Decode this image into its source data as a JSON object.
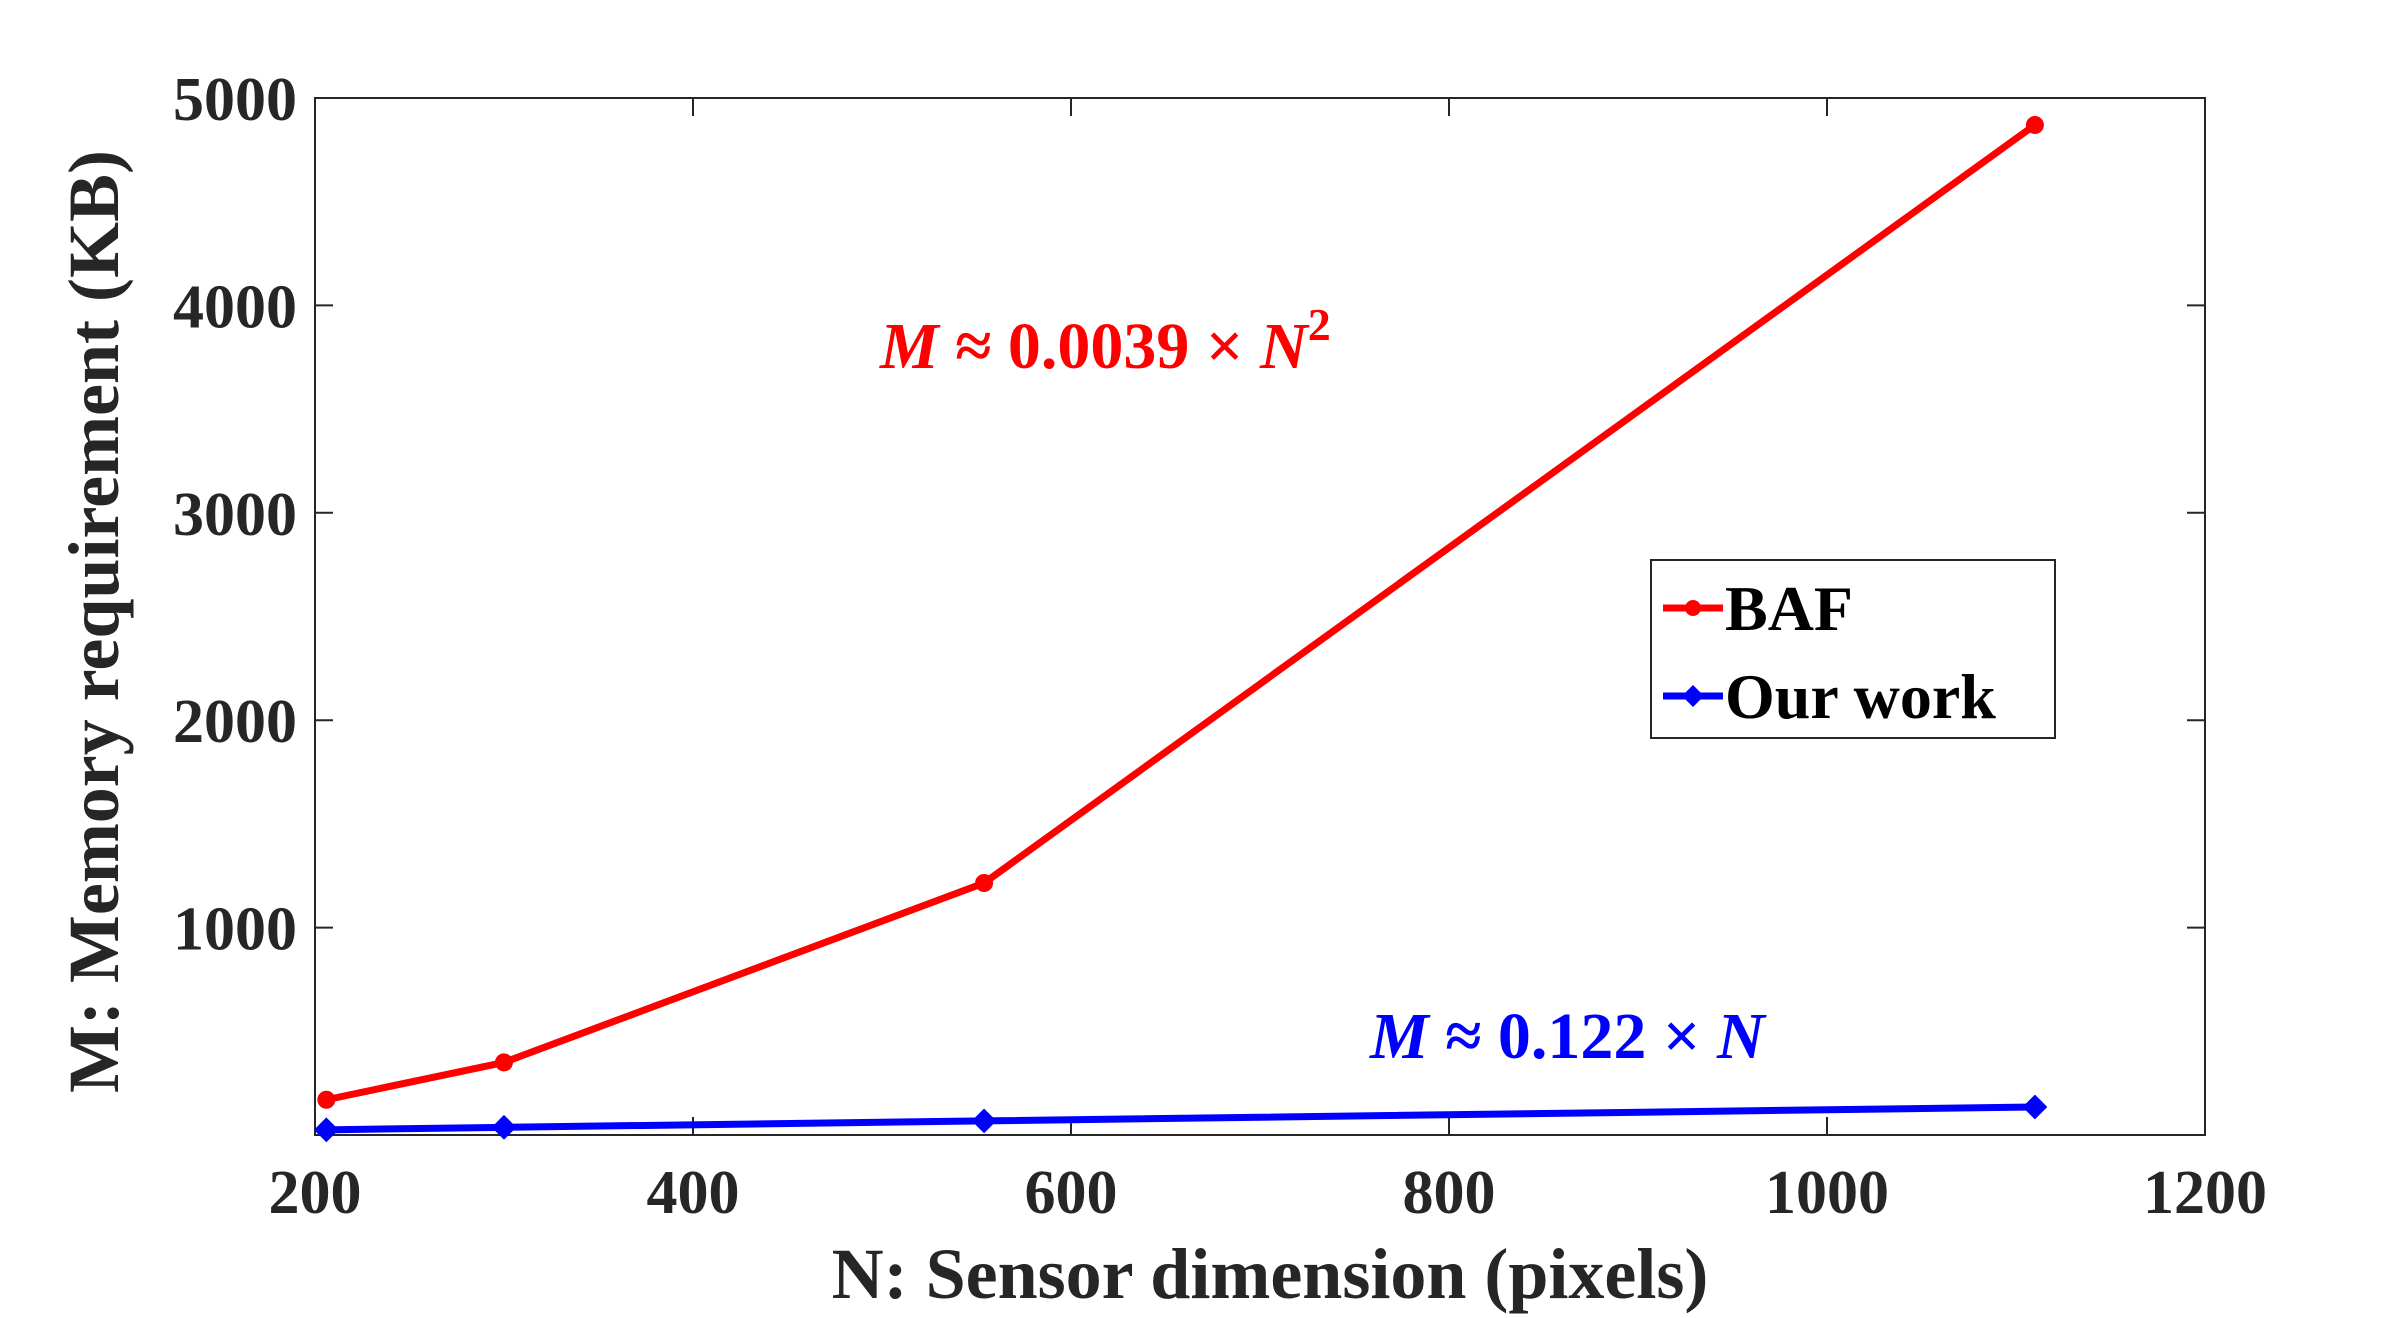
{
  "chart_data": {
    "type": "line",
    "xlabel": "N: Sensor dimension (pixels)",
    "ylabel": "M: Memory requirement (KB)",
    "xlim": [
      200,
      1200
    ],
    "ylim": [
      0,
      5000
    ],
    "xticks": [
      200,
      400,
      600,
      800,
      1000,
      1200
    ],
    "yticks": [
      1000,
      2000,
      3000,
      4000,
      5000
    ],
    "xtick_labels": [
      "200",
      "400",
      "600",
      "800",
      "1000",
      "1200"
    ],
    "ytick_labels": [
      "1000",
      "2000",
      "3000",
      "4000",
      "5000"
    ],
    "grid": false,
    "legend_position": "right",
    "series": [
      {
        "name": "BAF",
        "color": "#ff0000",
        "marker": "circle",
        "x": [
          206,
          300,
          554,
          1110
        ],
        "y": [
          170,
          350,
          1215,
          4870
        ]
      },
      {
        "name": "Our work",
        "color": "#0000ff",
        "marker": "diamond",
        "x": [
          206,
          300,
          554,
          1110
        ],
        "y": [
          25,
          37,
          68,
          135
        ]
      }
    ],
    "annotations": [
      {
        "series": "BAF",
        "color": "#ff0000",
        "var": "M",
        "approx": "≈",
        "coef": "0.0039",
        "times": "×",
        "n": "N",
        "exp": "2"
      },
      {
        "series": "Our work",
        "color": "#0000ff",
        "var": "M",
        "approx": "≈",
        "coef": "0.122",
        "times": "×",
        "n": "N",
        "exp": ""
      }
    ]
  }
}
